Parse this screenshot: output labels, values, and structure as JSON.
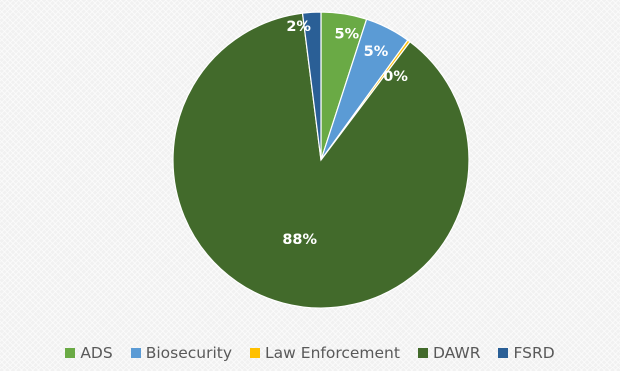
{
  "chart_data": {
    "type": "pie",
    "series": [
      {
        "values": [
          5,
          5,
          0.3,
          88,
          2
        ]
      }
    ],
    "categories": [
      "ADS",
      "Biosecurity",
      "Law Enforcement",
      "DAWR",
      "FSRD"
    ],
    "data_labels": [
      "5%",
      "5%",
      "0%",
      "88%",
      "2%"
    ],
    "colors": [
      "#6aaa45",
      "#5b9bd5",
      "#ffc000",
      "#426a2b",
      "#2a5f96"
    ],
    "legend": "bottom",
    "start_angle_deg": 0,
    "direction": "clockwise"
  }
}
